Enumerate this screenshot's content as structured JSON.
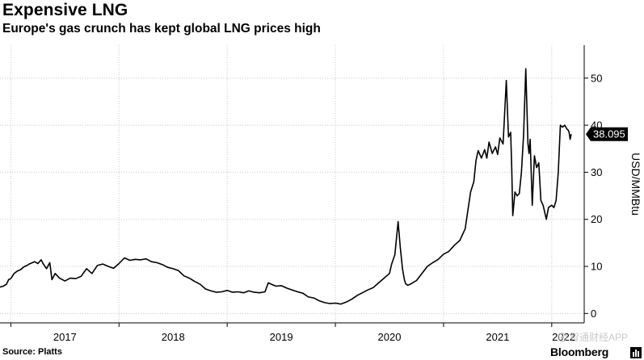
{
  "header": {
    "title": "Expensive LNG",
    "subtitle": "Europe's gas crunch has kept global LNG prices high"
  },
  "footer": {
    "source": "Source: Platts",
    "brand": "Bloomberg",
    "watermark": "智通财经APP"
  },
  "colors": {
    "line": "#000000",
    "grid": "#c8c8c8",
    "axis": "#000000",
    "label_bg": "#000000",
    "label_text": "#ffffff"
  },
  "chart_data": {
    "type": "line",
    "title": "Expensive LNG",
    "subtitle": "Europe's gas crunch has kept global LNG prices high",
    "xlabel": "",
    "ylabel": "USD/MMBtu",
    "y_axis_side": "right",
    "ylim": [
      -2,
      57
    ],
    "yticks": [
      0,
      10,
      20,
      30,
      40,
      50
    ],
    "xlim": [
      2016.9,
      2022.3
    ],
    "xticks": [
      {
        "value": 2017.0,
        "label": "2017"
      },
      {
        "value": 2018.0,
        "label": "2018"
      },
      {
        "value": 2019.0,
        "label": "2019"
      },
      {
        "value": 2020.0,
        "label": "2020"
      },
      {
        "value": 2021.0,
        "label": "2021"
      },
      {
        "value": 2022.0,
        "label": "2022"
      }
    ],
    "grid": true,
    "last_value_label": "38.095",
    "series": [
      {
        "name": "LNG price",
        "x": [
          2016.9,
          2016.93,
          2016.96,
          2016.98,
          2017.0,
          2017.03,
          2017.06,
          2017.09,
          2017.12,
          2017.15,
          2017.17,
          2017.2,
          2017.22,
          2017.25,
          2017.28,
          2017.3,
          2017.33,
          2017.36,
          2017.38,
          2017.41,
          2017.45,
          2017.5,
          2017.55,
          2017.6,
          2017.65,
          2017.7,
          2017.75,
          2017.8,
          2017.85,
          2017.9,
          2017.95,
          2018.0,
          2018.05,
          2018.1,
          2018.15,
          2018.2,
          2018.25,
          2018.3,
          2018.35,
          2018.4,
          2018.45,
          2018.5,
          2018.55,
          2018.6,
          2018.65,
          2018.7,
          2018.75,
          2018.8,
          2018.85,
          2018.9,
          2018.95,
          2019.0,
          2019.05,
          2019.1,
          2019.15,
          2019.2,
          2019.25,
          2019.3,
          2019.35,
          2019.38,
          2019.4,
          2019.45,
          2019.5,
          2019.55,
          2019.6,
          2019.65,
          2019.7,
          2019.75,
          2019.8,
          2019.85,
          2019.9,
          2019.95,
          2020.0,
          2020.05,
          2020.1,
          2020.15,
          2020.2,
          2020.25,
          2020.3,
          2020.35,
          2020.4,
          2020.45,
          2020.5,
          2020.52,
          2020.55,
          2020.58,
          2020.6,
          2020.62,
          2020.63,
          2020.64,
          2020.65,
          2020.67,
          2020.7,
          2020.75,
          2020.8,
          2020.85,
          2020.9,
          2020.95,
          2021.0,
          2021.05,
          2021.1,
          2021.15,
          2021.2,
          2021.25,
          2021.28,
          2021.3,
          2021.32,
          2021.35,
          2021.38,
          2021.4,
          2021.42,
          2021.45,
          2021.48,
          2021.5,
          2021.52,
          2021.55,
          2021.58,
          2021.6,
          2021.62,
          2021.63,
          2021.64,
          2021.66,
          2021.68,
          2021.7,
          2021.72,
          2021.74,
          2021.76,
          2021.78,
          2021.79,
          2021.8,
          2021.82,
          2021.84,
          2021.86,
          2021.88,
          2021.9,
          2021.92,
          2021.93,
          2021.95,
          2021.97,
          2022.0,
          2022.02,
          2022.04,
          2022.06,
          2022.08,
          2022.1,
          2022.12,
          2022.14,
          2022.15,
          2022.16,
          2022.17,
          2022.18
        ],
        "values": [
          5.6,
          5.8,
          6.2,
          7.2,
          7.4,
          8.5,
          9.0,
          9.3,
          9.9,
          10.2,
          10.5,
          10.8,
          11.0,
          10.6,
          11.4,
          10.5,
          9.5,
          10.8,
          7.2,
          8.5,
          7.5,
          6.9,
          7.5,
          7.4,
          7.9,
          9.5,
          8.5,
          10.2,
          10.5,
          10.0,
          9.6,
          10.6,
          11.8,
          11.3,
          11.5,
          11.4,
          11.6,
          11.0,
          10.8,
          10.4,
          9.8,
          9.5,
          9.1,
          8.0,
          7.5,
          6.8,
          6.2,
          5.2,
          4.8,
          4.5,
          4.6,
          4.9,
          4.5,
          4.6,
          4.4,
          4.8,
          4.5,
          4.4,
          4.6,
          6.5,
          6.3,
          5.8,
          5.9,
          5.4,
          5.0,
          4.6,
          4.3,
          3.5,
          3.3,
          2.7,
          2.3,
          2.1,
          2.2,
          2.0,
          2.4,
          3.0,
          3.8,
          4.4,
          5.0,
          5.5,
          6.5,
          7.5,
          8.5,
          10.5,
          12.5,
          19.5,
          14.0,
          9.5,
          8.2,
          7.0,
          6.3,
          6.0,
          6.3,
          7.0,
          8.5,
          10.0,
          10.8,
          11.5,
          12.6,
          13.2,
          14.5,
          15.5,
          18.0,
          25.8,
          28.0,
          32.5,
          34.6,
          33.0,
          34.8,
          33.0,
          36.4,
          34.0,
          35.4,
          33.8,
          37.3,
          36.0,
          49.5,
          37.5,
          38.5,
          31.0,
          20.8,
          25.8,
          25.0,
          25.5,
          30.0,
          38.0,
          52.0,
          36.0,
          34.0,
          37.0,
          23.0,
          33.5,
          31.0,
          32.0,
          24.0,
          23.0,
          22.0,
          20.0,
          22.5,
          23.0,
          22.5,
          24.0,
          30.0,
          40.0,
          39.6,
          40.0,
          39.2,
          39.0,
          38.5,
          37.0,
          38.095
        ]
      }
    ]
  }
}
